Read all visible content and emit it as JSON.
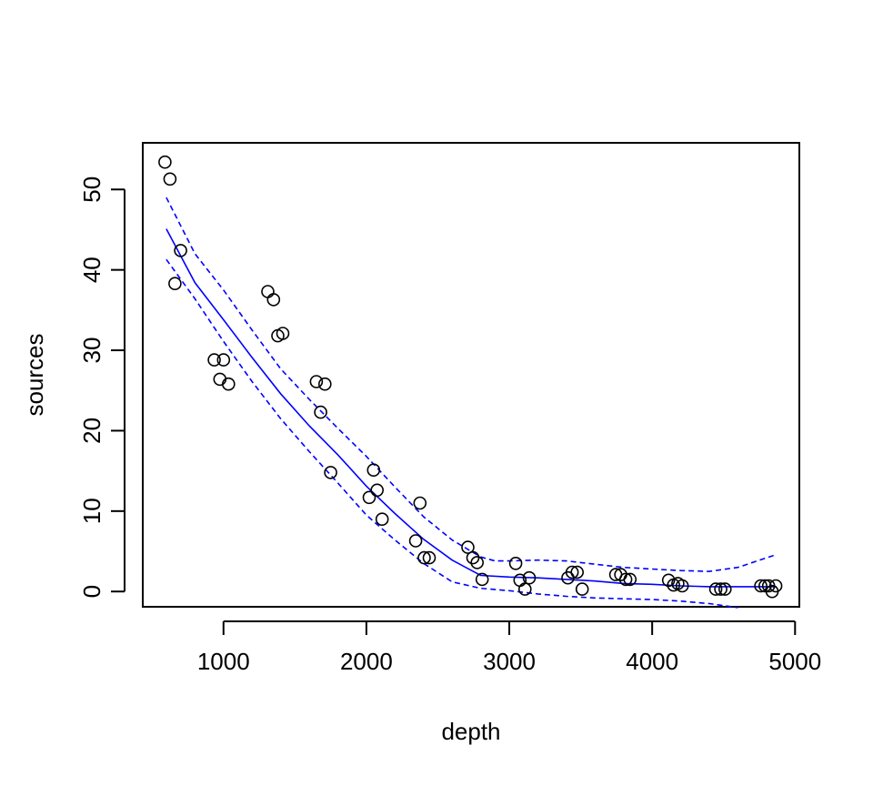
{
  "chart_data": {
    "type": "scatter",
    "title": "",
    "xlabel": "depth",
    "ylabel": "sources",
    "xlim": [
      435,
      5030
    ],
    "ylim": [
      -1.9,
      55.8
    ],
    "x_ticks": [
      1000,
      2000,
      3000,
      4000,
      5000
    ],
    "x_tick_labels": [
      "1000",
      "2000",
      "3000",
      "4000",
      "5000"
    ],
    "y_ticks": [
      0,
      10,
      20,
      30,
      40,
      50
    ],
    "y_tick_labels": [
      "0",
      "10",
      "20",
      "30",
      "40",
      "50"
    ],
    "grid": false,
    "legend": "none",
    "colors": {
      "points": "#000000",
      "fit": "#0000ff",
      "band": "#0000ff"
    },
    "points": [
      [
        590,
        53.4
      ],
      [
        625,
        51.3
      ],
      [
        660,
        38.3
      ],
      [
        700,
        42.4
      ],
      [
        935,
        28.8
      ],
      [
        975,
        26.4
      ],
      [
        1000,
        28.8
      ],
      [
        1035,
        25.8
      ],
      [
        1310,
        37.3
      ],
      [
        1350,
        36.3
      ],
      [
        1380,
        31.8
      ],
      [
        1415,
        32.1
      ],
      [
        1650,
        26.1
      ],
      [
        1680,
        22.3
      ],
      [
        1710,
        25.8
      ],
      [
        1750,
        14.8
      ],
      [
        2020,
        11.7
      ],
      [
        2050,
        15.1
      ],
      [
        2075,
        12.6
      ],
      [
        2110,
        9.0
      ],
      [
        2345,
        6.3
      ],
      [
        2375,
        11.0
      ],
      [
        2405,
        4.2
      ],
      [
        2440,
        4.2
      ],
      [
        2710,
        5.5
      ],
      [
        2745,
        4.2
      ],
      [
        2775,
        3.6
      ],
      [
        2810,
        1.5
      ],
      [
        3045,
        3.5
      ],
      [
        3075,
        1.4
      ],
      [
        3110,
        0.3
      ],
      [
        3140,
        1.7
      ],
      [
        3410,
        1.7
      ],
      [
        3440,
        2.4
      ],
      [
        3475,
        2.4
      ],
      [
        3510,
        0.3
      ],
      [
        3745,
        2.1
      ],
      [
        3780,
        2.1
      ],
      [
        3815,
        1.5
      ],
      [
        3845,
        1.5
      ],
      [
        4115,
        1.4
      ],
      [
        4150,
        0.8
      ],
      [
        4180,
        1.0
      ],
      [
        4210,
        0.7
      ],
      [
        4445,
        0.3
      ],
      [
        4480,
        0.3
      ],
      [
        4510,
        0.3
      ],
      [
        4760,
        0.7
      ],
      [
        4790,
        0.7
      ],
      [
        4815,
        0.7
      ],
      [
        4840,
        0.0
      ],
      [
        4865,
        0.7
      ]
    ],
    "series": [
      {
        "style": "solid",
        "x": [
          600,
          800,
          1000,
          1200,
          1400,
          1600,
          1800,
          2000,
          2200,
          2400,
          2600,
          2800,
          3000,
          3200,
          3400,
          3600,
          3800,
          4000,
          4200,
          4400,
          4600,
          4870
        ],
        "y": [
          45.1,
          38.4,
          33.8,
          29.1,
          24.6,
          20.6,
          17.0,
          13.1,
          9.7,
          6.5,
          3.9,
          2.0,
          1.8,
          1.7,
          1.5,
          1.3,
          1.0,
          0.9,
          0.7,
          0.6,
          0.6,
          0.6
        ]
      },
      {
        "style": "dashed",
        "x": [
          600,
          800,
          1000,
          1200,
          1400,
          1600,
          1800,
          2000,
          2200,
          2400,
          2600,
          2800,
          2900,
          3000,
          3200,
          3400,
          3600,
          3800,
          4000,
          4200,
          4400,
          4600,
          4870
        ],
        "y": [
          49.0,
          42.0,
          37.5,
          32.5,
          27.7,
          23.9,
          20.3,
          16.8,
          13.0,
          9.3,
          6.4,
          4.3,
          3.8,
          3.8,
          3.9,
          3.8,
          3.4,
          3.0,
          2.8,
          2.6,
          2.5,
          3.0,
          4.6
        ]
      },
      {
        "style": "dashed",
        "x": [
          600,
          800,
          1000,
          1200,
          1400,
          1600,
          1800,
          2000,
          2200,
          2400,
          2600,
          2800,
          3000,
          3200,
          3400,
          3600,
          3800,
          4000,
          4200,
          4400,
          4600
        ],
        "y": [
          41.3,
          36.4,
          31.1,
          26.1,
          21.5,
          17.4,
          13.5,
          9.5,
          6.4,
          3.5,
          1.2,
          0.4,
          0.1,
          -0.3,
          -0.6,
          -0.8,
          -0.9,
          -1.0,
          -1.2,
          -1.5,
          -2.0
        ]
      }
    ]
  }
}
